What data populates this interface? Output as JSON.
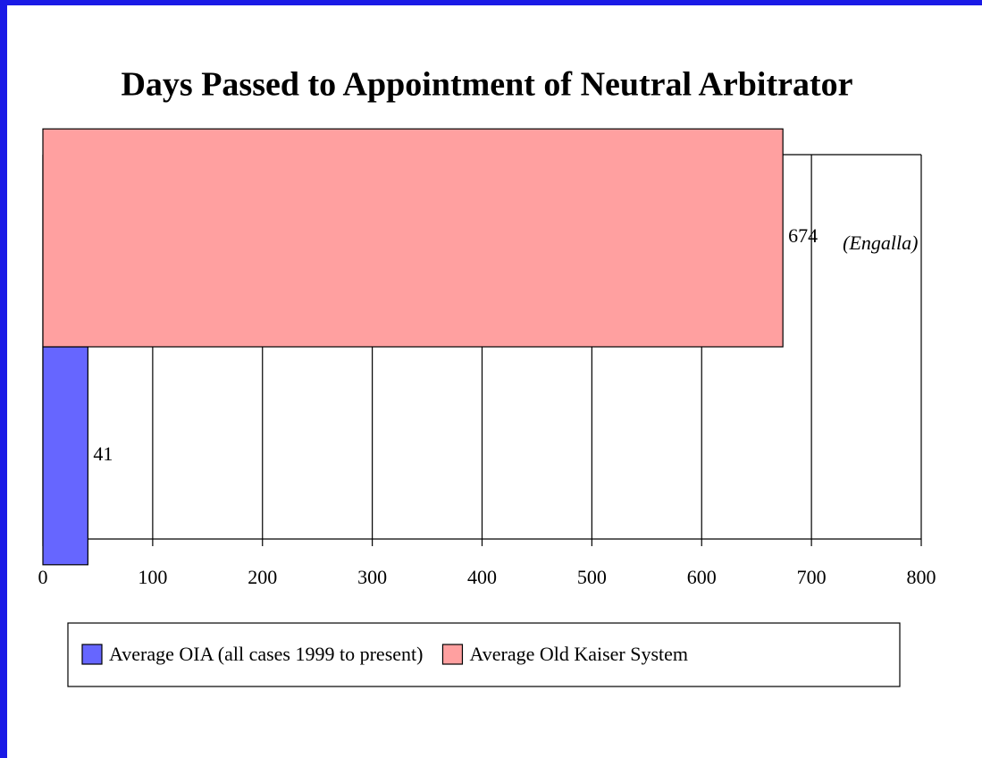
{
  "chart_data": {
    "type": "barh",
    "title": "Days Passed to Appointment of Neutral Arbitrator",
    "categories": [
      null
    ],
    "series": [
      {
        "name": "Average OIA (all cases 1999 to present)",
        "color": "#6666ff",
        "values": [
          41
        ]
      },
      {
        "name": "Average Old Kaiser System",
        "color": "#ffa0a0",
        "values": [
          674
        ]
      }
    ],
    "annotation": "(Engalla)",
    "xlim": [
      0,
      800
    ],
    "xticks": [
      0,
      100,
      200,
      300,
      400,
      500,
      600,
      700,
      800
    ],
    "grid": true,
    "legend": "bottom"
  }
}
